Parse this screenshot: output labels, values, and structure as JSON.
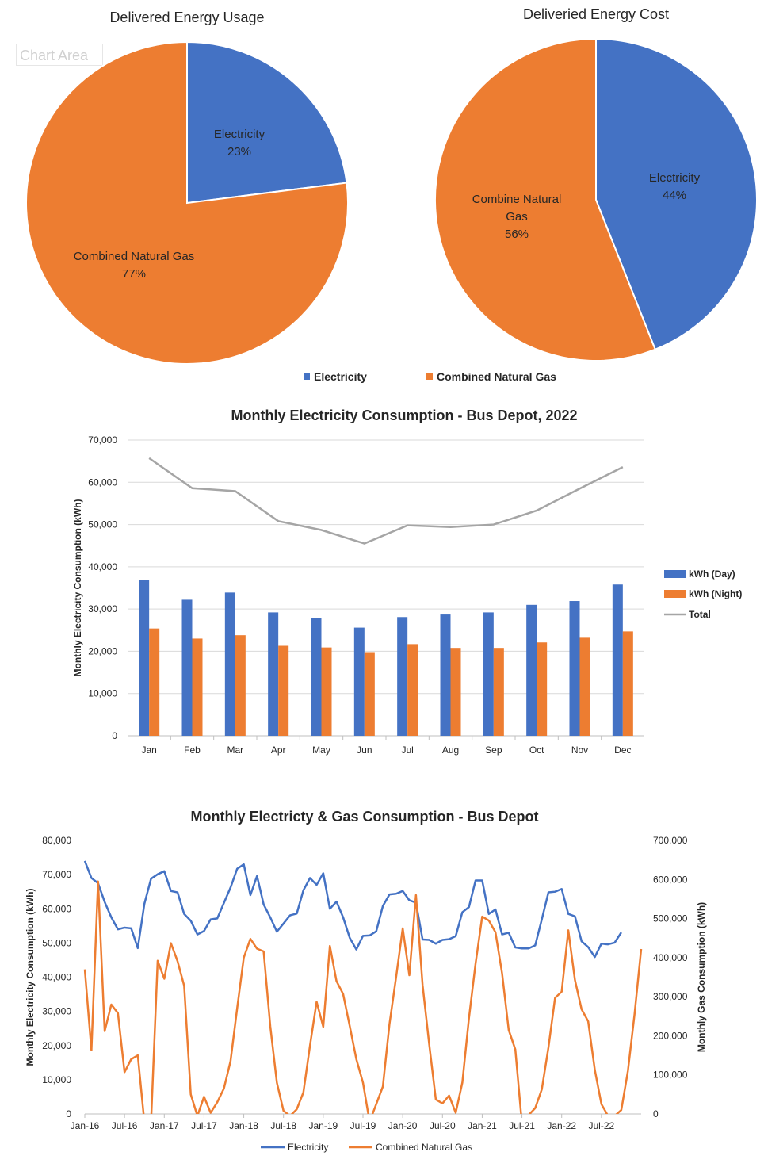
{
  "tooltip": "Chart Area",
  "chart_data": [
    {
      "type": "pie",
      "title": "Delivered Energy Usage",
      "slices": [
        {
          "name": "Electricity",
          "value": 23,
          "label": "23%",
          "color": "#4472C4"
        },
        {
          "name": "Combined Natural Gas",
          "value": 77,
          "label": "77%",
          "color": "#ED7D31"
        }
      ]
    },
    {
      "type": "pie",
      "title": "Deliveried Energy Cost",
      "slices": [
        {
          "name": "Electricity",
          "value": 44,
          "label": "44%",
          "color": "#4472C4"
        },
        {
          "name": "Combine Natural Gas",
          "value": 56,
          "label": "56%",
          "color": "#ED7D31"
        }
      ]
    },
    {
      "type": "legend",
      "entries": [
        {
          "name": "Electricity",
          "color": "#4472C4"
        },
        {
          "name": "Combined Natural Gas",
          "color": "#ED7D31"
        }
      ]
    },
    {
      "type": "bar",
      "title": "Monthly Electricity Consumption - Bus Depot, 2022",
      "ylabel": "Monthly  Electricity Consumption (kWh)",
      "ylim": [
        0,
        70000
      ],
      "yticks": [
        0,
        10000,
        20000,
        30000,
        40000,
        50000,
        60000,
        70000
      ],
      "ytick_labels": [
        "0",
        "10,000",
        "20,000",
        "30,000",
        "40,000",
        "50,000",
        "60,000",
        "70,000"
      ],
      "grid": true,
      "legend_position": "right",
      "categories": [
        "Jan",
        "Feb",
        "Mar",
        "Apr",
        "May",
        "Jun",
        "Jul",
        "Aug",
        "Sep",
        "Oct",
        "Nov",
        "Dec"
      ],
      "series": [
        {
          "name": "kWh (Day)",
          "kind": "bar",
          "color": "#4472C4",
          "values": [
            36800,
            32200,
            33900,
            29200,
            27800,
            25600,
            28100,
            28700,
            29200,
            31000,
            31900,
            35800
          ]
        },
        {
          "name": "kWh (Night)",
          "kind": "bar",
          "color": "#ED7D31",
          "values": [
            25400,
            23000,
            23800,
            21300,
            20900,
            19800,
            21700,
            20800,
            20800,
            22100,
            23200,
            24700
          ]
        },
        {
          "name": "Total",
          "kind": "line",
          "color": "#A5A5A5",
          "values": [
            65700,
            58600,
            57900,
            50800,
            48700,
            45500,
            49800,
            49400,
            50000,
            53300,
            58500,
            63600
          ]
        }
      ]
    },
    {
      "type": "line",
      "title": "Monthly Electricty & Gas Consumption -  Bus Depot",
      "ylabel": "Monthly  Electricity Consumption (kWh)",
      "ylabel_right": "Monthly Gas Consumption (kWh)",
      "ylim": [
        0,
        80000
      ],
      "ylim_right": [
        0,
        700000
      ],
      "yticks": [
        0,
        10000,
        20000,
        30000,
        40000,
        50000,
        60000,
        70000,
        80000
      ],
      "ytick_labels": [
        "0",
        "10,000",
        "20,000",
        "30,000",
        "40,000",
        "50,000",
        "60,000",
        "70,000",
        "80,000"
      ],
      "yticks_right": [
        0,
        100000,
        200000,
        300000,
        400000,
        500000,
        600000,
        700000
      ],
      "ytick_labels_right": [
        "0",
        "100,000",
        "200,000",
        "300,000",
        "400,000",
        "500,000",
        "600,000",
        "700,000"
      ],
      "xticks": [
        0,
        6,
        12,
        18,
        24,
        30,
        36,
        42,
        48,
        54,
        60,
        66,
        72,
        78
      ],
      "xtick_labels": [
        "Jan-16",
        "Jul-16",
        "Jan-17",
        "Jul-17",
        "Jan-18",
        "Jul-18",
        "Jan-19",
        "Jul-19",
        "Jan-20",
        "Jul-20",
        "Jan-21",
        "Jul-21",
        "Jan-22",
        "Jul-22"
      ],
      "grid": false,
      "legend_position": "bottom",
      "series": [
        {
          "name": "Electricity",
          "axis": "left",
          "color": "#4472C4",
          "values": [
            74000,
            69000,
            67500,
            62000,
            57500,
            54000,
            54500,
            54300,
            48500,
            61500,
            68800,
            70100,
            71000,
            65200,
            64800,
            58500,
            56500,
            52500,
            53500,
            56900,
            57200,
            61700,
            66200,
            71700,
            73000,
            64000,
            69600,
            61300,
            57500,
            53300,
            55700,
            58100,
            58600,
            65400,
            69000,
            67000,
            70400,
            60000,
            62100,
            57500,
            51500,
            48100,
            52100,
            52200,
            53400,
            60800,
            64200,
            64400,
            65200,
            62500,
            61800,
            51000,
            50900,
            49800,
            50900,
            51100,
            52000,
            59000,
            60500,
            68300,
            68300,
            58500,
            59800,
            52500,
            53000,
            48700,
            48400,
            48400,
            49300,
            56900,
            64800,
            65000,
            65800,
            58500,
            57800,
            50500,
            48800,
            45900,
            49800,
            49600,
            50100,
            53100
          ]
        },
        {
          "name": "Combined Natural Gas",
          "axis": "right",
          "color": "#ED7D31",
          "values": [
            370000,
            163000,
            595000,
            212000,
            280000,
            258000,
            107000,
            140000,
            150000,
            -22000,
            -22000,
            392000,
            346000,
            437000,
            391000,
            328000,
            50000,
            -5000,
            44000,
            3000,
            30000,
            65000,
            135000,
            270000,
            400000,
            448000,
            423000,
            416000,
            225000,
            80000,
            8000,
            -5000,
            12000,
            55000,
            175000,
            287000,
            223000,
            430000,
            340000,
            307000,
            225000,
            140000,
            80000,
            -20000,
            25000,
            70000,
            230000,
            350000,
            475000,
            355000,
            560000,
            330000,
            178000,
            37000,
            27000,
            47000,
            3000,
            80000,
            245000,
            385000,
            505000,
            495000,
            465000,
            360000,
            215000,
            165000,
            -25000,
            -3000,
            15000,
            63000,
            170000,
            297000,
            313000,
            470000,
            343000,
            268000,
            237000,
            113000,
            25000,
            -5000,
            -5000,
            10000,
            110000,
            255000,
            422000
          ]
        }
      ]
    },
    {
      "type": "legend",
      "entries": [
        {
          "name": "Electricity",
          "color": "#4472C4"
        },
        {
          "name": "Combined Natural Gas",
          "color": "#ED7D31"
        }
      ]
    }
  ]
}
